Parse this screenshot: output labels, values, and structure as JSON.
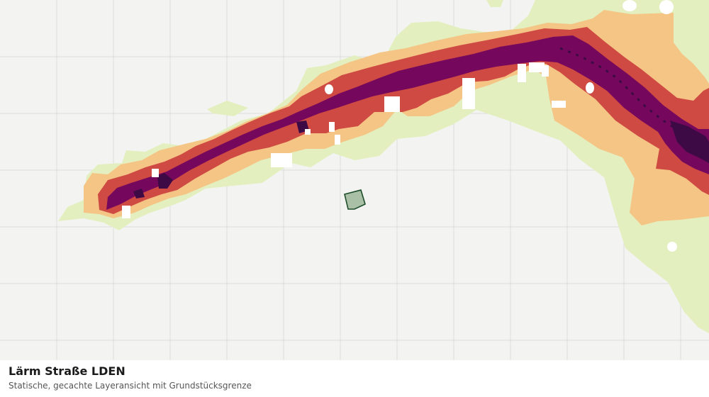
{
  "map": {
    "layer": "noise-road-lden",
    "colors": {
      "background": "#f3f4f2",
      "grid": "#dcdcdc",
      "band_1": "#e4efc0",
      "band_2": "#f4c585",
      "band_3": "#cf4a43",
      "band_4": "#75085c",
      "band_5": "#3e0a45",
      "parcel_fill": "#a9bfa6",
      "parcel_stroke": "#1e4d2b"
    }
  },
  "caption": {
    "title": "Lärm Straße LDEN",
    "subtitle": "Statische, gecachte Layeransicht mit Grundstücksgrenze"
  }
}
